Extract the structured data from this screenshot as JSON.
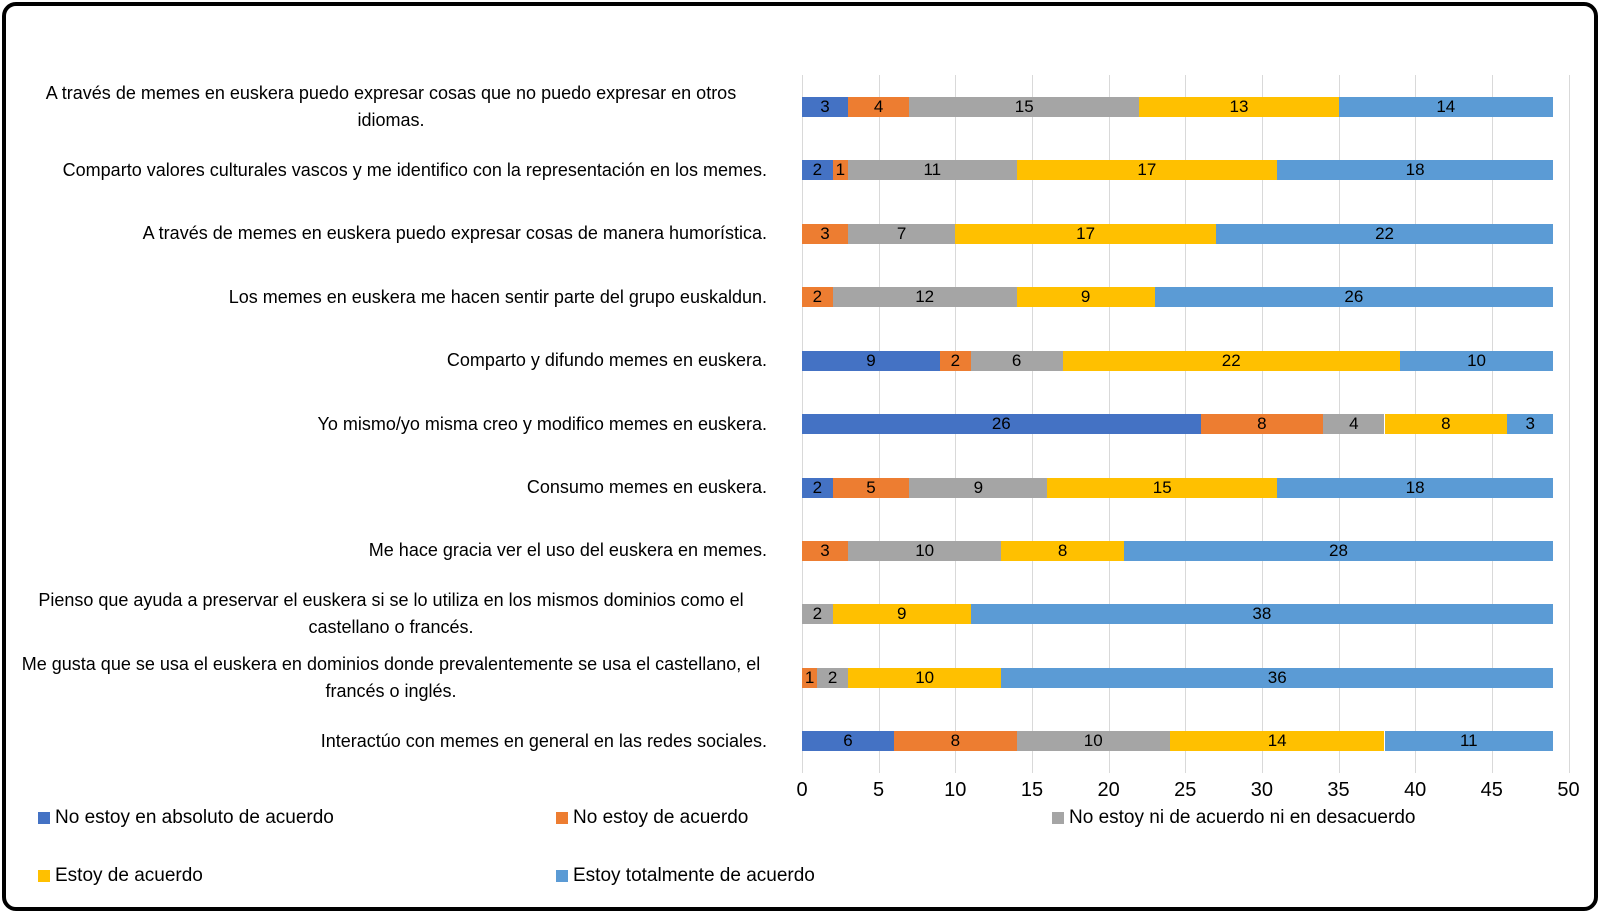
{
  "chart_data": {
    "type": "bar",
    "stacked": true,
    "orientation": "horizontal",
    "title": "",
    "xlabel": "",
    "ylabel": "",
    "xlim": [
      0,
      50
    ],
    "x_ticks": [
      0,
      5,
      10,
      15,
      20,
      25,
      30,
      35,
      40,
      45,
      50
    ],
    "grid": true,
    "legend_position": "bottom",
    "categories": [
      "A través de memes en euskera puedo expresar cosas que no puedo expresar en otros idiomas.",
      "Comparto valores culturales vascos y me identifico con la representación en los memes.",
      "A través de memes en euskera puedo expresar cosas de manera humorística.",
      "Los memes en euskera me hacen sentir parte del grupo euskaldun.",
      "Comparto y difundo memes en euskera.",
      "Yo mismo/yo misma creo y modifico memes en euskera.",
      "Consumo memes en euskera.",
      "Me hace gracia ver el uso del euskera en memes.",
      "Pienso que ayuda a preservar el euskera si se lo utiliza en los mismos dominios como el castellano o francés.",
      "Me gusta que se usa el euskera en dominios donde prevalentemente se usa el castellano, el francés o inglés.",
      "Interactúo con memes en general en las redes sociales."
    ],
    "series": [
      {
        "name": "No estoy en absoluto de acuerdo",
        "color": "#4472C4",
        "values": [
          3,
          2,
          0,
          0,
          9,
          26,
          2,
          0,
          0,
          0,
          6
        ]
      },
      {
        "name": "No estoy de acuerdo",
        "color": "#ED7D31",
        "values": [
          4,
          1,
          3,
          2,
          2,
          8,
          5,
          3,
          0,
          1,
          8
        ]
      },
      {
        "name": "No estoy ni de acuerdo ni en desacuerdo",
        "color": "#A5A5A5",
        "values": [
          15,
          11,
          7,
          12,
          6,
          4,
          9,
          10,
          2,
          2,
          10
        ]
      },
      {
        "name": "Estoy de acuerdo",
        "color": "#FFC000",
        "values": [
          13,
          17,
          17,
          9,
          22,
          8,
          15,
          8,
          9,
          10,
          14
        ]
      },
      {
        "name": "Estoy totalmente de acuerdo",
        "color": "#5B9BD5",
        "values": [
          14,
          18,
          22,
          26,
          10,
          3,
          18,
          28,
          38,
          36,
          11
        ]
      }
    ],
    "colors": {
      "gridline": "#D9D9D9",
      "text": "#000000",
      "frame_border": "#000000",
      "background": "#FFFFFF"
    }
  }
}
